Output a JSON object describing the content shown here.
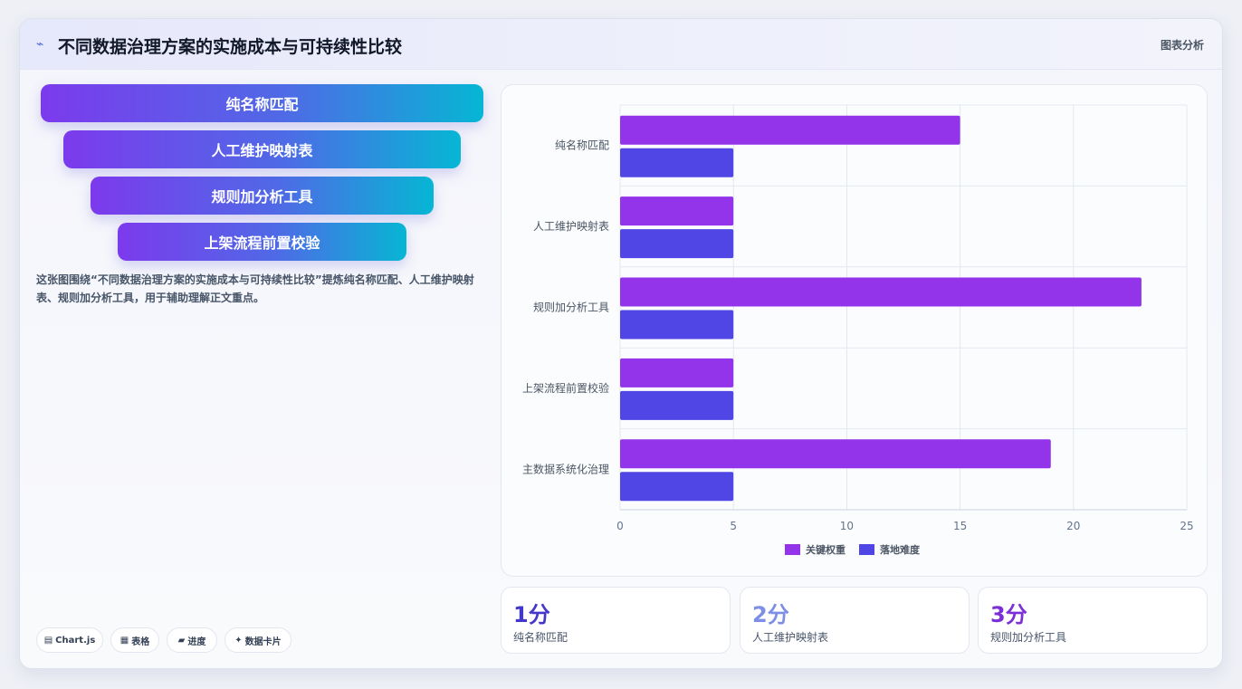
{
  "header": {
    "title": "不同数据治理方案的实施成本与可持续性比较",
    "tag": "图表分析"
  },
  "funnel": [
    "纯名称匹配",
    "人工维护映射表",
    "规则加分析工具",
    "上架流程前置校验"
  ],
  "description": "这张图围绕“不同数据治理方案的实施成本与可持续性比较”提炼纯名称匹配、人工维护映射表、规则加分析工具，用于辅助理解正文重点。",
  "chips": [
    {
      "icon": "▤",
      "label": "Chart.js"
    },
    {
      "icon": "▦",
      "label": "表格"
    },
    {
      "icon": "▰",
      "label": "进度"
    },
    {
      "icon": "✦",
      "label": "数据卡片"
    }
  ],
  "stats": [
    {
      "value": "1分",
      "label": "纯名称匹配",
      "color": "#4338ca"
    },
    {
      "value": "2分",
      "label": "人工维护映射表",
      "color": "#7c8ee6"
    },
    {
      "value": "3分",
      "label": "规则加分析工具",
      "color": "#7c2fd6"
    }
  ],
  "chart_data": {
    "type": "bar",
    "orientation": "horizontal",
    "categories": [
      "纯名称匹配",
      "人工维护映射表",
      "规则加分析工具",
      "上架流程前置校验",
      "主数据系统化治理"
    ],
    "series": [
      {
        "name": "关键权重",
        "values": [
          15,
          5,
          23,
          5,
          19
        ],
        "color": "#9333ea"
      },
      {
        "name": "落地难度",
        "values": [
          5,
          5,
          5,
          5,
          5
        ],
        "color": "#4f46e5"
      }
    ],
    "xlim": [
      0,
      25
    ],
    "xticks": [
      "0",
      "5",
      "10",
      "15",
      "20",
      "25"
    ],
    "grid": true,
    "legend": "bottom"
  }
}
